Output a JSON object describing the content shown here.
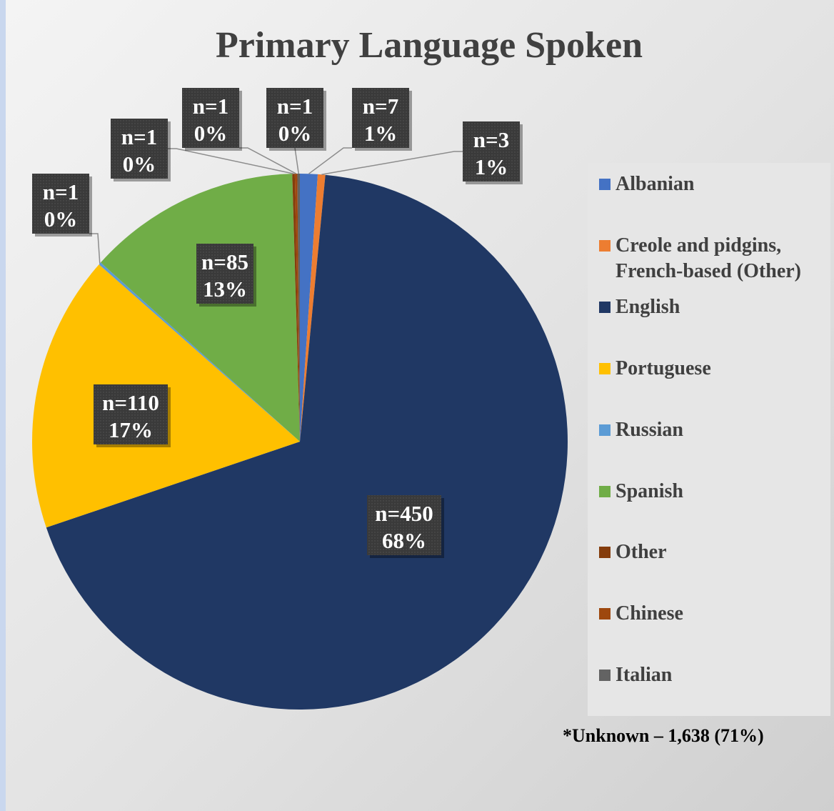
{
  "chart_data": {
    "type": "pie",
    "title": "Primary Language Spoken",
    "categories": [
      "Albanian",
      "Creole and pidgins, French-based (Other)",
      "English",
      "Portuguese",
      "Russian",
      "Spanish",
      "Other",
      "Chinese",
      "Italian"
    ],
    "values": [
      7,
      3,
      450,
      110,
      1,
      85,
      1,
      1,
      1
    ],
    "value_labels": [
      "n=7",
      "n=3",
      "n=450",
      "n=110",
      "n=1",
      "n=85",
      "n=1",
      "n=1",
      "n=1"
    ],
    "percent_labels": [
      "1%",
      "1%",
      "68%",
      "17%",
      "0%",
      "13%",
      "0%",
      "0%",
      "0%"
    ],
    "colors": [
      "#4472c4",
      "#ed7d31",
      "#203864",
      "#ffc000",
      "#5b9bd5",
      "#70ad47",
      "#843c0c",
      "#9e480e",
      "#636363"
    ],
    "legend": "right",
    "annotation": "*Unknown – 1,638 (71%)"
  }
}
